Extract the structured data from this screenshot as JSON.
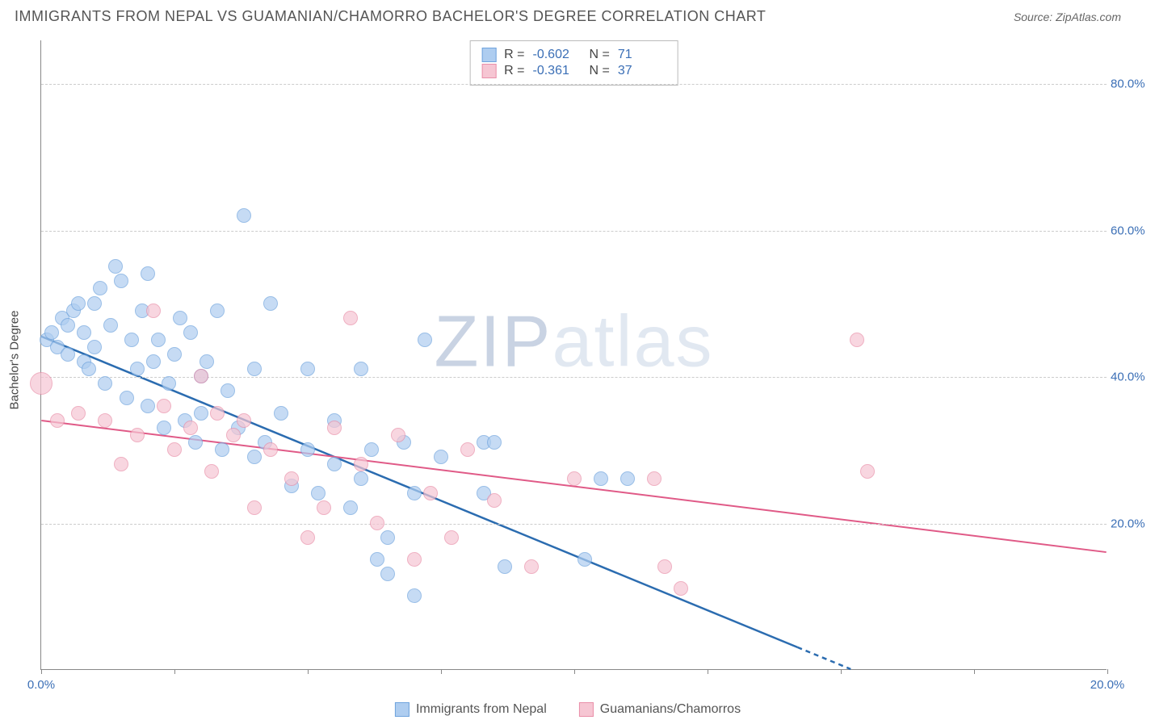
{
  "title": "IMMIGRANTS FROM NEPAL VS GUAMANIAN/CHAMORRO BACHELOR'S DEGREE CORRELATION CHART",
  "source": "Source: ZipAtlas.com",
  "watermark_a": "ZIP",
  "watermark_b": "atlas",
  "ylabel": "Bachelor's Degree",
  "chart": {
    "type": "scatter",
    "xlim": [
      0,
      20
    ],
    "ylim": [
      0,
      86
    ],
    "background_color": "#ffffff",
    "grid_color": "#cccccc",
    "axis_color": "#888888",
    "tick_label_color": "#3b6fb6",
    "tick_fontsize": 15,
    "marker_radius": 9,
    "marker_opacity": 0.7,
    "xtick_step": 2.5,
    "xtick_labels": [
      {
        "x": 0,
        "label": "0.0%"
      },
      {
        "x": 20,
        "label": "20.0%"
      }
    ],
    "ytick_labels": [
      {
        "y": 20,
        "label": "20.0%"
      },
      {
        "y": 40,
        "label": "40.0%"
      },
      {
        "y": 60,
        "label": "60.0%"
      },
      {
        "y": 80,
        "label": "80.0%"
      }
    ],
    "series": [
      {
        "name": "Immigrants from Nepal",
        "fill": "#aecdf0",
        "stroke": "#6fa3dd",
        "R": "-0.602",
        "N": "71",
        "trend_color": "#2b6cb0",
        "trend_width": 2.5,
        "trend": {
          "x1": 0,
          "y1": 45.5,
          "x2": 15.2,
          "y2": 0,
          "dash_from_x": 14.2
        },
        "points": [
          [
            0.1,
            45
          ],
          [
            0.2,
            46
          ],
          [
            0.3,
            44
          ],
          [
            0.4,
            48
          ],
          [
            0.5,
            47
          ],
          [
            0.5,
            43
          ],
          [
            0.6,
            49
          ],
          [
            0.7,
            50
          ],
          [
            0.8,
            42
          ],
          [
            0.8,
            46
          ],
          [
            0.9,
            41
          ],
          [
            1.0,
            50
          ],
          [
            1.0,
            44
          ],
          [
            1.1,
            52
          ],
          [
            1.2,
            39
          ],
          [
            1.3,
            47
          ],
          [
            1.4,
            55
          ],
          [
            1.5,
            53
          ],
          [
            1.6,
            37
          ],
          [
            1.7,
            45
          ],
          [
            1.8,
            41
          ],
          [
            1.9,
            49
          ],
          [
            2.0,
            54
          ],
          [
            2.0,
            36
          ],
          [
            2.1,
            42
          ],
          [
            2.2,
            45
          ],
          [
            2.3,
            33
          ],
          [
            2.4,
            39
          ],
          [
            2.5,
            43
          ],
          [
            2.6,
            48
          ],
          [
            2.7,
            34
          ],
          [
            2.8,
            46
          ],
          [
            2.9,
            31
          ],
          [
            3.0,
            40
          ],
          [
            3.0,
            35
          ],
          [
            3.1,
            42
          ],
          [
            3.3,
            49
          ],
          [
            3.4,
            30
          ],
          [
            3.5,
            38
          ],
          [
            3.7,
            33
          ],
          [
            3.8,
            62
          ],
          [
            4.0,
            29
          ],
          [
            4.0,
            41
          ],
          [
            4.2,
            31
          ],
          [
            4.3,
            50
          ],
          [
            4.5,
            35
          ],
          [
            4.7,
            25
          ],
          [
            5.0,
            41
          ],
          [
            5.0,
            30
          ],
          [
            5.2,
            24
          ],
          [
            5.5,
            28
          ],
          [
            5.5,
            34
          ],
          [
            5.8,
            22
          ],
          [
            6.0,
            41
          ],
          [
            6.0,
            26
          ],
          [
            6.2,
            30
          ],
          [
            6.3,
            15
          ],
          [
            6.5,
            13
          ],
          [
            6.5,
            18
          ],
          [
            6.8,
            31
          ],
          [
            7.0,
            10
          ],
          [
            7.0,
            24
          ],
          [
            7.2,
            45
          ],
          [
            7.5,
            29
          ],
          [
            8.3,
            31
          ],
          [
            8.3,
            24
          ],
          [
            8.5,
            31
          ],
          [
            8.7,
            14
          ],
          [
            10.2,
            15
          ],
          [
            10.5,
            26
          ],
          [
            11.0,
            26
          ]
        ]
      },
      {
        "name": "Guamanians/Chamorros",
        "fill": "#f6c6d3",
        "stroke": "#e98fa9",
        "R": "-0.361",
        "N": "37",
        "trend_color": "#e05a87",
        "trend_width": 2,
        "trend": {
          "x1": 0,
          "y1": 34,
          "x2": 20,
          "y2": 16
        },
        "points_big": [
          [
            0.0,
            39
          ]
        ],
        "points": [
          [
            0.3,
            34
          ],
          [
            0.7,
            35
          ],
          [
            1.2,
            34
          ],
          [
            1.5,
            28
          ],
          [
            1.8,
            32
          ],
          [
            2.1,
            49
          ],
          [
            2.3,
            36
          ],
          [
            2.5,
            30
          ],
          [
            2.8,
            33
          ],
          [
            3.0,
            40
          ],
          [
            3.2,
            27
          ],
          [
            3.3,
            35
          ],
          [
            3.6,
            32
          ],
          [
            3.8,
            34
          ],
          [
            4.0,
            22
          ],
          [
            4.3,
            30
          ],
          [
            4.7,
            26
          ],
          [
            5.0,
            18
          ],
          [
            5.3,
            22
          ],
          [
            5.5,
            33
          ],
          [
            5.8,
            48
          ],
          [
            6.0,
            28
          ],
          [
            6.3,
            20
          ],
          [
            6.7,
            32
          ],
          [
            7.0,
            15
          ],
          [
            7.3,
            24
          ],
          [
            7.7,
            18
          ],
          [
            8.0,
            30
          ],
          [
            8.5,
            23
          ],
          [
            9.2,
            14
          ],
          [
            10.0,
            26
          ],
          [
            11.5,
            26
          ],
          [
            11.7,
            14
          ],
          [
            12.0,
            11
          ],
          [
            15.3,
            45
          ],
          [
            15.5,
            27
          ]
        ]
      }
    ]
  },
  "legend_bottom": [
    {
      "label": "Immigrants from Nepal",
      "fill": "#aecdf0",
      "stroke": "#6fa3dd"
    },
    {
      "label": "Guamanians/Chamorros",
      "fill": "#f6c6d3",
      "stroke": "#e98fa9"
    }
  ]
}
